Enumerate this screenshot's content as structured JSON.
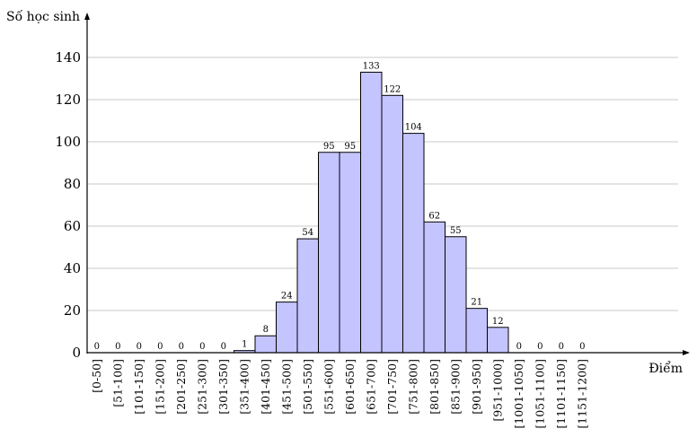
{
  "chart_data": {
    "type": "bar",
    "ylabel": "Số học sinh",
    "xlabel": "Điểm",
    "ylim": [
      0,
      140
    ],
    "yticks": [
      0,
      20,
      40,
      60,
      80,
      100,
      120,
      140
    ],
    "grid": true,
    "categories": [
      "[0-50]",
      "[51-100]",
      "[101-150]",
      "[151-200]",
      "[201-250]",
      "[251-300]",
      "[301-350]",
      "[351-400]",
      "[401-450]",
      "[451-500]",
      "[501-550]",
      "[551-600]",
      "[601-650]",
      "[651-700]",
      "[701-750]",
      "[751-800]",
      "[801-850]",
      "[851-900]",
      "[901-950]",
      "[951-1000]",
      "[1001-1050]",
      "[1051-1100]",
      "[1101-1150]",
      "[1151-1200]"
    ],
    "values": [
      0,
      0,
      0,
      0,
      0,
      0,
      0,
      1,
      8,
      24,
      54,
      95,
      95,
      133,
      122,
      104,
      62,
      55,
      21,
      12,
      0,
      0,
      0,
      0
    ],
    "colors": {
      "bar_fill": "#c4c4ff",
      "bar_stroke": "#000000",
      "grid": "#c8c8c8"
    }
  }
}
